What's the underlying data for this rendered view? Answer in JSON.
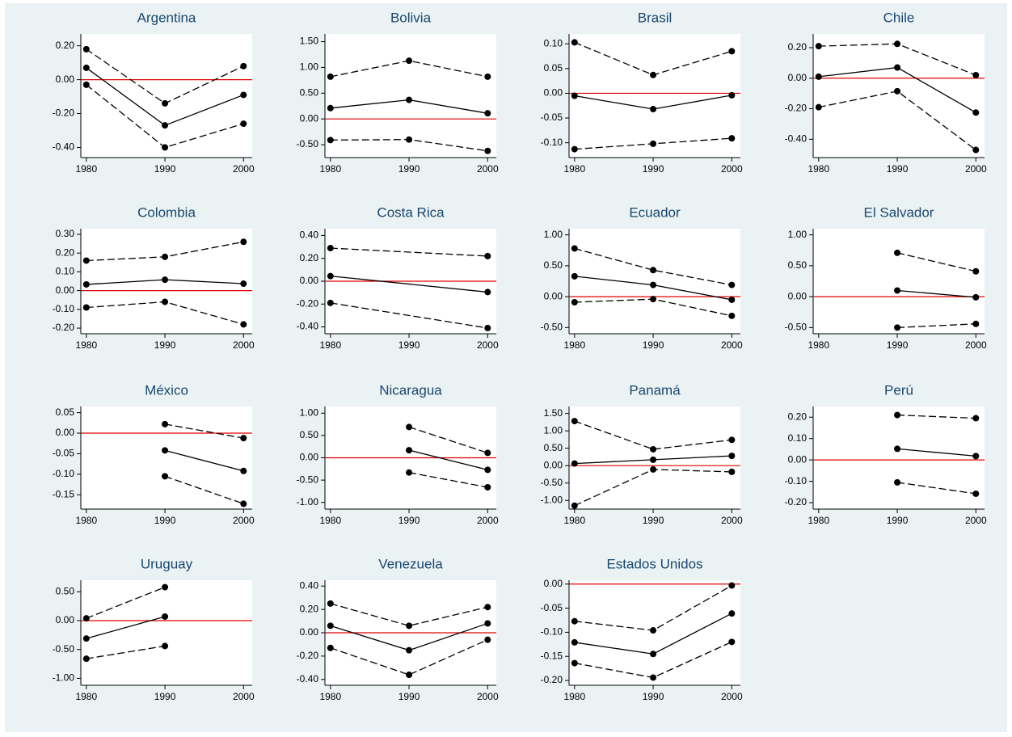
{
  "chart_data": [
    {
      "type": "line",
      "title": "Argentina",
      "x": [
        1980,
        1990,
        2000
      ],
      "xlim": [
        1979.3,
        2001.1
      ],
      "xticks": [
        1980,
        1990,
        2000
      ],
      "ylim": [
        -0.46,
        0.27
      ],
      "yticks": [
        {
          "value": 0.2,
          "label": "0.20"
        },
        {
          "value": 0,
          "label": "0.00"
        },
        {
          "value": -0.2,
          "label": "-0.20"
        },
        {
          "value": -0.4,
          "label": "-0.40"
        }
      ],
      "hline": 0,
      "hline_color": "#e00000",
      "series": [
        {
          "color": "#000000",
          "dashed": true,
          "values": [
            0.18,
            -0.14,
            0.08
          ]
        },
        {
          "color": "#000000",
          "dashed": false,
          "values": [
            0.07,
            -0.27,
            -0.09
          ]
        },
        {
          "color": "#000000",
          "dashed": true,
          "values": [
            -0.03,
            -0.4,
            -0.26
          ]
        }
      ]
    },
    {
      "type": "line",
      "title": "Bolivia",
      "x": [
        1980,
        1990,
        2000
      ],
      "xlim": [
        1979.3,
        2001.1
      ],
      "xticks": [
        1980,
        1990,
        2000
      ],
      "ylim": [
        -0.75,
        1.65
      ],
      "yticks": [
        {
          "value": 1.5,
          "label": "1.50"
        },
        {
          "value": 1,
          "label": "1.00"
        },
        {
          "value": 0.5,
          "label": "0.50"
        },
        {
          "value": 0,
          "label": "0.00"
        },
        {
          "value": -0.5,
          "label": "-0.50"
        }
      ],
      "hline": 0,
      "hline_color": "#e00000",
      "series": [
        {
          "color": "#000000",
          "dashed": true,
          "values": [
            0.82,
            1.13,
            0.82
          ]
        },
        {
          "color": "#000000",
          "dashed": false,
          "values": [
            0.21,
            0.37,
            0.11
          ]
        },
        {
          "color": "#000000",
          "dashed": true,
          "values": [
            -0.41,
            -0.4,
            -0.62
          ]
        }
      ]
    },
    {
      "type": "line",
      "title": "Brasil",
      "x": [
        1980,
        1990,
        2000
      ],
      "xlim": [
        1979.3,
        2001.1
      ],
      "xticks": [
        1980,
        1990,
        2000
      ],
      "ylim": [
        -0.13,
        0.12
      ],
      "yticks": [
        {
          "value": 0.1,
          "label": "0.10"
        },
        0.05,
        {
          "value": 0,
          "label": "0.00"
        },
        -0.05,
        {
          "value": -0.1,
          "label": "-0.10"
        }
      ],
      "hline": 0,
      "hline_color": "#e00000",
      "series": [
        {
          "color": "#000000",
          "dashed": true,
          "values": [
            0.103,
            0.037,
            0.085
          ]
        },
        {
          "color": "#000000",
          "dashed": false,
          "values": [
            -0.005,
            -0.032,
            -0.004
          ]
        },
        {
          "color": "#000000",
          "dashed": true,
          "values": [
            -0.113,
            -0.102,
            -0.091
          ]
        }
      ]
    },
    {
      "type": "line",
      "title": "Chile",
      "x": [
        1980,
        1990,
        2000
      ],
      "xlim": [
        1979.3,
        2001.1
      ],
      "xticks": [
        1980,
        1990,
        2000
      ],
      "ylim": [
        -0.52,
        0.29
      ],
      "yticks": [
        {
          "value": 0.2,
          "label": "0.20"
        },
        {
          "value": 0,
          "label": "0.00"
        },
        {
          "value": -0.2,
          "label": "-0.20"
        },
        {
          "value": -0.4,
          "label": "-0.40"
        }
      ],
      "hline": 0,
      "hline_color": "#e00000",
      "series": [
        {
          "color": "#000000",
          "dashed": true,
          "values": [
            0.21,
            0.225,
            0.02
          ]
        },
        {
          "color": "#000000",
          "dashed": false,
          "values": [
            0.01,
            0.07,
            -0.225
          ]
        },
        {
          "color": "#000000",
          "dashed": true,
          "values": [
            -0.19,
            -0.085,
            -0.47
          ]
        }
      ]
    },
    {
      "type": "line",
      "title": "Colombia",
      "x": [
        1980,
        1990,
        2000
      ],
      "xlim": [
        1979.3,
        2001.1
      ],
      "xticks": [
        1980,
        1990,
        2000
      ],
      "ylim": [
        -0.23,
        0.33
      ],
      "yticks": [
        {
          "value": 0.3,
          "label": "0.30"
        },
        {
          "value": 0.2,
          "label": "0.20"
        },
        {
          "value": 0.1,
          "label": "0.10"
        },
        {
          "value": 0,
          "label": "0.00"
        },
        {
          "value": -0.1,
          "label": "-0.10"
        },
        {
          "value": -0.2,
          "label": "-0.20"
        }
      ],
      "hline": 0,
      "hline_color": "#e00000",
      "series": [
        {
          "color": "#000000",
          "dashed": true,
          "values": [
            0.16,
            0.18,
            0.26
          ]
        },
        {
          "color": "#000000",
          "dashed": false,
          "values": [
            0.033,
            0.058,
            0.037
          ]
        },
        {
          "color": "#000000",
          "dashed": true,
          "values": [
            -0.09,
            -0.06,
            -0.18
          ]
        }
      ]
    },
    {
      "type": "line",
      "title": "Costa Rica",
      "x": [
        1980,
        2000
      ],
      "xlim": [
        1979.3,
        2001.1
      ],
      "xticks": [
        1980,
        1990,
        2000
      ],
      "ylim": [
        -0.46,
        0.46
      ],
      "yticks": [
        {
          "value": 0.4,
          "label": "0.40"
        },
        {
          "value": 0.2,
          "label": "0.20"
        },
        {
          "value": 0,
          "label": "0.00"
        },
        {
          "value": -0.2,
          "label": "-0.20"
        },
        {
          "value": -0.4,
          "label": "-0.40"
        }
      ],
      "hline": 0,
      "hline_color": "#e00000",
      "series": [
        {
          "color": "#000000",
          "dashed": true,
          "values": [
            0.29,
            0.22
          ]
        },
        {
          "color": "#000000",
          "dashed": false,
          "values": [
            0.045,
            -0.095
          ]
        },
        {
          "color": "#000000",
          "dashed": true,
          "values": [
            -0.19,
            -0.41
          ]
        }
      ]
    },
    {
      "type": "line",
      "title": "Ecuador",
      "x": [
        1980,
        1990,
        2000
      ],
      "xlim": [
        1979.3,
        2001.1
      ],
      "xticks": [
        1980,
        1990,
        2000
      ],
      "ylim": [
        -0.6,
        1.1
      ],
      "yticks": [
        {
          "value": 1,
          "label": "1.00"
        },
        {
          "value": 0.5,
          "label": "0.50"
        },
        {
          "value": 0,
          "label": "0.00"
        },
        {
          "value": -0.5,
          "label": "-0.50"
        }
      ],
      "hline": 0,
      "hline_color": "#e00000",
      "series": [
        {
          "color": "#000000",
          "dashed": true,
          "values": [
            0.78,
            0.43,
            0.19
          ]
        },
        {
          "color": "#000000",
          "dashed": false,
          "values": [
            0.33,
            0.19,
            -0.05
          ]
        },
        {
          "color": "#000000",
          "dashed": true,
          "values": [
            -0.09,
            -0.04,
            -0.31
          ]
        }
      ]
    },
    {
      "type": "line",
      "title": "El Salvador",
      "x": [
        1990,
        2000
      ],
      "xlim": [
        1979.3,
        2001.1
      ],
      "xticks": [
        1980,
        1990,
        2000
      ],
      "ylim": [
        -0.6,
        1.1
      ],
      "yticks": [
        {
          "value": 1,
          "label": "1.00"
        },
        {
          "value": 0.5,
          "label": "0.50"
        },
        {
          "value": 0,
          "label": "0.00"
        },
        {
          "value": -0.5,
          "label": "-0.50"
        }
      ],
      "hline": 0,
      "hline_color": "#e00000",
      "series": [
        {
          "color": "#000000",
          "dashed": true,
          "values": [
            0.71,
            0.41
          ]
        },
        {
          "color": "#000000",
          "dashed": false,
          "values": [
            0.1,
            -0.01
          ]
        },
        {
          "color": "#000000",
          "dashed": true,
          "values": [
            -0.5,
            -0.44
          ]
        }
      ]
    },
    {
      "type": "line",
      "title": "México",
      "x": [
        1990,
        2000
      ],
      "xlim": [
        1979.3,
        2001.1
      ],
      "xticks": [
        1980,
        1990,
        2000
      ],
      "ylim": [
        -0.185,
        0.065
      ],
      "yticks": [
        0.05,
        {
          "value": 0,
          "label": "0.00"
        },
        -0.05,
        {
          "value": -0.1,
          "label": "-0.10"
        },
        -0.15
      ],
      "hline": 0,
      "hline_color": "#e00000",
      "series": [
        {
          "color": "#000000",
          "dashed": true,
          "values": [
            0.022,
            -0.012
          ]
        },
        {
          "color": "#000000",
          "dashed": false,
          "values": [
            -0.042,
            -0.092
          ]
        },
        {
          "color": "#000000",
          "dashed": true,
          "values": [
            -0.105,
            -0.172
          ]
        }
      ]
    },
    {
      "type": "line",
      "title": "Nicaragua",
      "x": [
        1990,
        2000
      ],
      "xlim": [
        1979.3,
        2001.1
      ],
      "xticks": [
        1980,
        1990,
        2000
      ],
      "ylim": [
        -1.15,
        1.15
      ],
      "yticks": [
        {
          "value": 1,
          "label": "1.00"
        },
        {
          "value": 0.5,
          "label": "0.50"
        },
        {
          "value": 0,
          "label": "0.00"
        },
        {
          "value": -0.5,
          "label": "-0.50"
        },
        {
          "value": -1,
          "label": "-1.00"
        }
      ],
      "hline": 0,
      "hline_color": "#e00000",
      "series": [
        {
          "color": "#000000",
          "dashed": true,
          "values": [
            0.69,
            0.11
          ]
        },
        {
          "color": "#000000",
          "dashed": false,
          "values": [
            0.17,
            -0.27
          ]
        },
        {
          "color": "#000000",
          "dashed": true,
          "values": [
            -0.33,
            -0.66
          ]
        }
      ]
    },
    {
      "type": "line",
      "title": "Panamá",
      "x": [
        1980,
        1990,
        2000
      ],
      "xlim": [
        1979.3,
        2001.1
      ],
      "xticks": [
        1980,
        1990,
        2000
      ],
      "ylim": [
        -1.25,
        1.7
      ],
      "yticks": [
        {
          "value": 1.5,
          "label": "1.50"
        },
        {
          "value": 1,
          "label": "1.00"
        },
        {
          "value": 0.5,
          "label": "0.50"
        },
        {
          "value": 0,
          "label": "0.00"
        },
        {
          "value": -0.5,
          "label": "-0.50"
        },
        {
          "value": -1,
          "label": "-1.00"
        }
      ],
      "hline": 0,
      "hline_color": "#e00000",
      "series": [
        {
          "color": "#000000",
          "dashed": true,
          "values": [
            1.28,
            0.47,
            0.74
          ]
        },
        {
          "color": "#000000",
          "dashed": false,
          "values": [
            0.06,
            0.17,
            0.28
          ]
        },
        {
          "color": "#000000",
          "dashed": true,
          "values": [
            -1.15,
            -0.11,
            -0.18
          ]
        }
      ]
    },
    {
      "type": "line",
      "title": "Perú",
      "x": [
        1990,
        2000
      ],
      "xlim": [
        1979.3,
        2001.1
      ],
      "xticks": [
        1980,
        1990,
        2000
      ],
      "ylim": [
        -0.23,
        0.25
      ],
      "yticks": [
        {
          "value": 0.2,
          "label": "0.20"
        },
        {
          "value": 0.1,
          "label": "0.10"
        },
        {
          "value": 0,
          "label": "0.00"
        },
        {
          "value": -0.1,
          "label": "-0.10"
        },
        {
          "value": -0.2,
          "label": "-0.20"
        }
      ],
      "hline": 0,
      "hline_color": "#e00000",
      "series": [
        {
          "color": "#000000",
          "dashed": true,
          "values": [
            0.21,
            0.195
          ]
        },
        {
          "color": "#000000",
          "dashed": false,
          "values": [
            0.052,
            0.018
          ]
        },
        {
          "color": "#000000",
          "dashed": true,
          "values": [
            -0.105,
            -0.158
          ]
        }
      ]
    },
    {
      "type": "line",
      "title": "Uruguay",
      "x": [
        1980,
        1990
      ],
      "xlim": [
        1979.3,
        2001.1
      ],
      "xticks": [
        1980,
        1990,
        2000
      ],
      "ylim": [
        -1.12,
        0.7
      ],
      "yticks": [
        {
          "value": 0.5,
          "label": "0.50"
        },
        {
          "value": 0,
          "label": "0.00"
        },
        {
          "value": -0.5,
          "label": "-0.50"
        },
        {
          "value": -1,
          "label": "-1.00"
        }
      ],
      "hline": 0,
      "hline_color": "#e00000",
      "series": [
        {
          "color": "#000000",
          "dashed": true,
          "values": [
            0.04,
            0.58
          ]
        },
        {
          "color": "#000000",
          "dashed": false,
          "values": [
            -0.31,
            0.07
          ]
        },
        {
          "color": "#000000",
          "dashed": true,
          "values": [
            -0.66,
            -0.44
          ]
        }
      ]
    },
    {
      "type": "line",
      "title": "Venezuela",
      "x": [
        1980,
        1990,
        2000
      ],
      "xlim": [
        1979.3,
        2001.1
      ],
      "xticks": [
        1980,
        1990,
        2000
      ],
      "ylim": [
        -0.45,
        0.45
      ],
      "yticks": [
        {
          "value": 0.4,
          "label": "0.40"
        },
        {
          "value": 0.2,
          "label": "0.20"
        },
        {
          "value": 0,
          "label": "0.00"
        },
        {
          "value": -0.2,
          "label": "-0.20"
        },
        {
          "value": -0.4,
          "label": "-0.40"
        }
      ],
      "hline": 0,
      "hline_color": "#e00000",
      "series": [
        {
          "color": "#000000",
          "dashed": true,
          "values": [
            0.25,
            0.06,
            0.22
          ]
        },
        {
          "color": "#000000",
          "dashed": false,
          "values": [
            0.06,
            -0.15,
            0.08
          ]
        },
        {
          "color": "#000000",
          "dashed": true,
          "values": [
            -0.13,
            -0.36,
            -0.06
          ]
        }
      ]
    },
    {
      "type": "line",
      "title": "Estados Unidos",
      "x": [
        1980,
        1990,
        2000
      ],
      "xlim": [
        1979.3,
        2001.1
      ],
      "xticks": [
        1980,
        1990,
        2000
      ],
      "ylim": [
        -0.21,
        0.008
      ],
      "yticks": [
        {
          "value": 0,
          "label": "0.00"
        },
        -0.05,
        {
          "value": -0.1,
          "label": "-0.10"
        },
        -0.15,
        {
          "value": -0.2,
          "label": "-0.20"
        }
      ],
      "hline": 0,
      "hline_color": "#e00000",
      "series": [
        {
          "color": "#000000",
          "dashed": true,
          "values": [
            -0.077,
            -0.096,
            -0.003
          ]
        },
        {
          "color": "#000000",
          "dashed": false,
          "values": [
            -0.121,
            -0.145,
            -0.061
          ]
        },
        {
          "color": "#000000",
          "dashed": true,
          "values": [
            -0.164,
            -0.194,
            -0.12
          ]
        }
      ]
    }
  ]
}
